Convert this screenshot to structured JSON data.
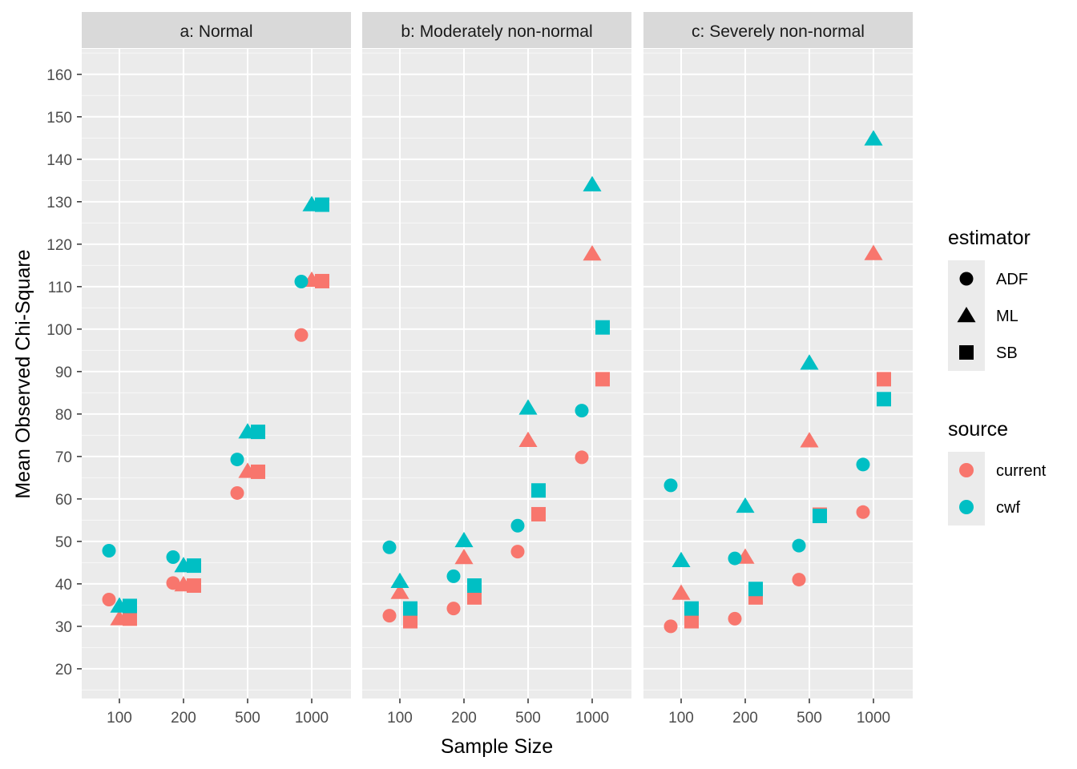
{
  "chart_data": {
    "type": "scatter",
    "facet_by": "distribution",
    "panels": [
      {
        "key": "a",
        "title": "a: Normal",
        "points": [
          {
            "n": "100",
            "estimator": "ADF",
            "source": "cwf",
            "y": 47.8
          },
          {
            "n": "100",
            "estimator": "ADF",
            "source": "current",
            "y": 36.3
          },
          {
            "n": "100",
            "estimator": "ML",
            "source": "cwf",
            "y": 34.8
          },
          {
            "n": "100",
            "estimator": "ML",
            "source": "current",
            "y": 31.8
          },
          {
            "n": "100",
            "estimator": "SB",
            "source": "cwf",
            "y": 34.8
          },
          {
            "n": "100",
            "estimator": "SB",
            "source": "current",
            "y": 31.8
          },
          {
            "n": "200",
            "estimator": "ADF",
            "source": "cwf",
            "y": 46.3
          },
          {
            "n": "200",
            "estimator": "ADF",
            "source": "current",
            "y": 40.2
          },
          {
            "n": "200",
            "estimator": "ML",
            "source": "cwf",
            "y": 44.3
          },
          {
            "n": "200",
            "estimator": "ML",
            "source": "current",
            "y": 39.8
          },
          {
            "n": "200",
            "estimator": "SB",
            "source": "cwf",
            "y": 44.3
          },
          {
            "n": "200",
            "estimator": "SB",
            "source": "current",
            "y": 39.6
          },
          {
            "n": "500",
            "estimator": "ADF",
            "source": "cwf",
            "y": 69.3
          },
          {
            "n": "500",
            "estimator": "ADF",
            "source": "current",
            "y": 61.4
          },
          {
            "n": "500",
            "estimator": "ML",
            "source": "cwf",
            "y": 75.8
          },
          {
            "n": "500",
            "estimator": "ML",
            "source": "current",
            "y": 66.5
          },
          {
            "n": "500",
            "estimator": "SB",
            "source": "cwf",
            "y": 75.8
          },
          {
            "n": "500",
            "estimator": "SB",
            "source": "current",
            "y": 66.4
          },
          {
            "n": "1000",
            "estimator": "ADF",
            "source": "cwf",
            "y": 111.2
          },
          {
            "n": "1000",
            "estimator": "ADF",
            "source": "current",
            "y": 98.6
          },
          {
            "n": "1000",
            "estimator": "ML",
            "source": "cwf",
            "y": 129.3
          },
          {
            "n": "1000",
            "estimator": "ML",
            "source": "current",
            "y": 111.5
          },
          {
            "n": "1000",
            "estimator": "SB",
            "source": "cwf",
            "y": 129.3
          },
          {
            "n": "1000",
            "estimator": "SB",
            "source": "current",
            "y": 111.3
          }
        ]
      },
      {
        "key": "b",
        "title": "b: Moderately non-normal",
        "points": [
          {
            "n": "100",
            "estimator": "ADF",
            "source": "cwf",
            "y": 48.6
          },
          {
            "n": "100",
            "estimator": "ADF",
            "source": "current",
            "y": 32.5
          },
          {
            "n": "100",
            "estimator": "ML",
            "source": "cwf",
            "y": 40.6
          },
          {
            "n": "100",
            "estimator": "ML",
            "source": "current",
            "y": 38.0
          },
          {
            "n": "100",
            "estimator": "SB",
            "source": "cwf",
            "y": 34.2
          },
          {
            "n": "100",
            "estimator": "SB",
            "source": "current",
            "y": 31.2
          },
          {
            "n": "200",
            "estimator": "ADF",
            "source": "cwf",
            "y": 41.8
          },
          {
            "n": "200",
            "estimator": "ADF",
            "source": "current",
            "y": 34.2
          },
          {
            "n": "200",
            "estimator": "ML",
            "source": "cwf",
            "y": 50.2
          },
          {
            "n": "200",
            "estimator": "ML",
            "source": "current",
            "y": 46.2
          },
          {
            "n": "200",
            "estimator": "SB",
            "source": "cwf",
            "y": 39.6
          },
          {
            "n": "200",
            "estimator": "SB",
            "source": "current",
            "y": 36.8
          },
          {
            "n": "500",
            "estimator": "ADF",
            "source": "cwf",
            "y": 53.7
          },
          {
            "n": "500",
            "estimator": "ADF",
            "source": "current",
            "y": 47.6
          },
          {
            "n": "500",
            "estimator": "ML",
            "source": "cwf",
            "y": 81.4
          },
          {
            "n": "500",
            "estimator": "ML",
            "source": "current",
            "y": 73.8
          },
          {
            "n": "500",
            "estimator": "SB",
            "source": "cwf",
            "y": 62.0
          },
          {
            "n": "500",
            "estimator": "SB",
            "source": "current",
            "y": 56.4
          },
          {
            "n": "1000",
            "estimator": "ADF",
            "source": "cwf",
            "y": 80.8
          },
          {
            "n": "1000",
            "estimator": "ADF",
            "source": "current",
            "y": 69.8
          },
          {
            "n": "1000",
            "estimator": "ML",
            "source": "cwf",
            "y": 134.0
          },
          {
            "n": "1000",
            "estimator": "ML",
            "source": "current",
            "y": 117.7
          },
          {
            "n": "1000",
            "estimator": "SB",
            "source": "cwf",
            "y": 100.4
          },
          {
            "n": "1000",
            "estimator": "SB",
            "source": "current",
            "y": 88.2
          }
        ]
      },
      {
        "key": "c",
        "title": "c: Severely non-normal",
        "points": [
          {
            "n": "100",
            "estimator": "ADF",
            "source": "cwf",
            "y": 63.2
          },
          {
            "n": "100",
            "estimator": "ADF",
            "source": "current",
            "y": 30.0
          },
          {
            "n": "100",
            "estimator": "ML",
            "source": "cwf",
            "y": 45.5
          },
          {
            "n": "100",
            "estimator": "ML",
            "source": "current",
            "y": 37.8
          },
          {
            "n": "100",
            "estimator": "SB",
            "source": "cwf",
            "y": 34.2
          },
          {
            "n": "100",
            "estimator": "SB",
            "source": "current",
            "y": 31.2
          },
          {
            "n": "200",
            "estimator": "ADF",
            "source": "cwf",
            "y": 46.0
          },
          {
            "n": "200",
            "estimator": "ADF",
            "source": "current",
            "y": 31.8
          },
          {
            "n": "200",
            "estimator": "ML",
            "source": "cwf",
            "y": 58.3
          },
          {
            "n": "200",
            "estimator": "ML",
            "source": "current",
            "y": 46.3
          },
          {
            "n": "200",
            "estimator": "SB",
            "source": "cwf",
            "y": 38.8
          },
          {
            "n": "200",
            "estimator": "SB",
            "source": "current",
            "y": 36.8
          },
          {
            "n": "500",
            "estimator": "ADF",
            "source": "cwf",
            "y": 49.0
          },
          {
            "n": "500",
            "estimator": "ADF",
            "source": "current",
            "y": 41.0
          },
          {
            "n": "500",
            "estimator": "ML",
            "source": "cwf",
            "y": 92.0
          },
          {
            "n": "500",
            "estimator": "ML",
            "source": "current",
            "y": 73.7
          },
          {
            "n": "500",
            "estimator": "SB",
            "source": "cwf",
            "y": 56.0
          },
          {
            "n": "500",
            "estimator": "SB",
            "source": "current",
            "y": 56.3
          },
          {
            "n": "1000",
            "estimator": "ADF",
            "source": "cwf",
            "y": 68.1
          },
          {
            "n": "1000",
            "estimator": "ADF",
            "source": "current",
            "y": 56.9
          },
          {
            "n": "1000",
            "estimator": "ML",
            "source": "cwf",
            "y": 144.8
          },
          {
            "n": "1000",
            "estimator": "ML",
            "source": "current",
            "y": 117.8
          },
          {
            "n": "1000",
            "estimator": "SB",
            "source": "cwf",
            "y": 83.5
          },
          {
            "n": "1000",
            "estimator": "SB",
            "source": "current",
            "y": 88.2
          }
        ]
      }
    ],
    "x_categories": [
      "100",
      "200",
      "500",
      "1000"
    ],
    "xlabel": "Sample Size",
    "ylabel": "Mean Observed Chi-Square",
    "ylim": [
      13,
      166
    ],
    "y_ticks": [
      20,
      30,
      40,
      50,
      60,
      70,
      80,
      90,
      100,
      110,
      120,
      130,
      140,
      150,
      160
    ],
    "grid": true,
    "legend_position": "right",
    "legends": [
      {
        "title": "estimator",
        "entries": [
          {
            "label": "ADF",
            "shape": "circle"
          },
          {
            "label": "ML",
            "shape": "triangle"
          },
          {
            "label": "SB",
            "shape": "square"
          }
        ]
      },
      {
        "title": "source",
        "entries": [
          {
            "label": "current",
            "color": "#F8766D"
          },
          {
            "label": "cwf",
            "color": "#00BFC4"
          }
        ]
      }
    ],
    "colors": {
      "current": "#F8766D",
      "cwf": "#00BFC4"
    }
  }
}
